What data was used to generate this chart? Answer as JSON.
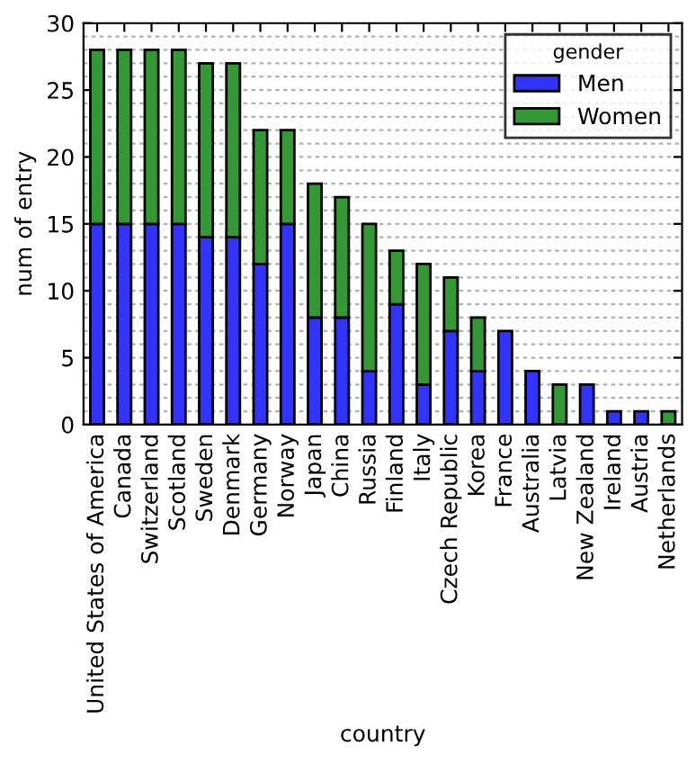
{
  "chart_data": {
    "type": "bar",
    "stacked": true,
    "xlabel": "country",
    "ylabel": "num of entry",
    "legend_title": "gender",
    "legend": "top right",
    "grid": "y",
    "categories": [
      "United States of America",
      "Canada",
      "Switzerland",
      "Scotland",
      "Sweden",
      "Denmark",
      "Germany",
      "Norway",
      "Japan",
      "China",
      "Russia",
      "Finland",
      "Italy",
      "Czech Republic",
      "Korea",
      "France",
      "Australia",
      "Latvia",
      "New Zealand",
      "Ireland",
      "Austria",
      "Netherlands"
    ],
    "series": [
      {
        "name": "Men",
        "color": "#3333ff",
        "values": [
          15,
          15,
          15,
          15,
          14,
          14,
          12,
          15,
          8,
          8,
          4,
          9,
          3,
          7,
          4,
          7,
          4,
          0,
          3,
          1,
          1,
          0
        ]
      },
      {
        "name": "Women",
        "color": "#339933",
        "values": [
          13,
          13,
          13,
          13,
          13,
          13,
          10,
          7,
          10,
          9,
          11,
          4,
          9,
          4,
          4,
          0,
          0,
          3,
          0,
          0,
          0,
          1
        ]
      }
    ],
    "ylim": [
      0,
      30
    ],
    "yticks": [
      0,
      5,
      10,
      15,
      20,
      25,
      30
    ]
  }
}
